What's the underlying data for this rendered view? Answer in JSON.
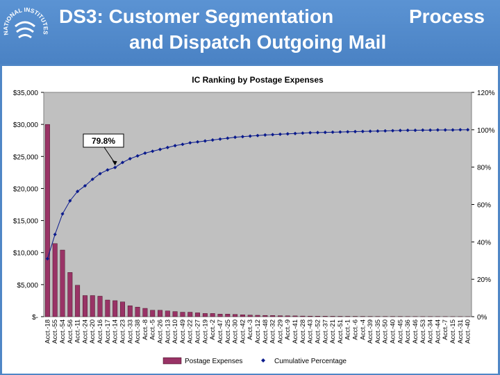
{
  "slide": {
    "title_part1": "DS3: Customer Segmentation",
    "title_part2": "Process",
    "title_line2": "and Dispatch Outgoing Mail",
    "logo_text": "NATIONAL INSTITUTES OF HEALTH"
  },
  "colors": {
    "background": "#4f86c6",
    "bar": "#993366",
    "line": "#0a1a8c",
    "plot_bg": "#c0c0c0"
  },
  "chart_data": {
    "type": "bar",
    "title": "IC Ranking by Postage Expenses",
    "callout": "79.8%",
    "callout_index": 9,
    "y_ticks_left": [
      "$35,000",
      "$30,000",
      "$25,000",
      "$20,000",
      "$15,000",
      "$10,000",
      "$5,000",
      "$-"
    ],
    "y_ticks_right": [
      "120%",
      "100%",
      "80%",
      "60%",
      "40%",
      "20%",
      "0%"
    ],
    "ylim_left": [
      0,
      35000
    ],
    "ylim_right": [
      0,
      1.2
    ],
    "legend": [
      "Postage Expenses",
      "Cumulative Percentage"
    ],
    "categories": [
      "Acct.-18",
      "Acct.-55",
      "Acct.-54",
      "Acct.-56",
      "Acct.-11",
      "Acct.-24",
      "Acct.-20",
      "Acct.-16",
      "Acct.-17",
      "Acct.-14",
      "Acct.-23",
      "Acct.-33",
      "Acct.-38",
      "Acct.-8",
      "Acct.-5",
      "Acct.-26",
      "Acct.-13",
      "Acct.-10",
      "Acct.-49",
      "Acct.-22",
      "Acct.-27",
      "Acct.-19",
      "Acct.-2",
      "Acct.-47",
      "Acct.-25",
      "Acct.-30",
      "Acct.-42",
      "Acct.-3",
      "Acct.-12",
      "Acct.-48",
      "Acct.-32",
      "Acct.-29",
      "Acct.-9",
      "Acct.-41",
      "Acct.-28",
      "Acct.-43",
      "Acct.-52",
      "Acct.-37",
      "Acct.-21",
      "Acct.-51",
      "Acct.-1",
      "Acct.-6",
      "Acct.-4",
      "Acct.-39",
      "Acct.-35",
      "Acct.-50",
      "Acct.-40",
      "Acct.-45",
      "Acct.-36",
      "Acct.-46",
      "Acct.-53",
      "Acct.-34",
      "Acct.-44",
      "Acct.-7",
      "Acct.-15",
      "Acct.-31",
      "Acct.-40"
    ],
    "series": [
      {
        "name": "Postage Expenses",
        "type": "bar",
        "values": [
          30000,
          11400,
          10400,
          6900,
          4900,
          3300,
          3300,
          3200,
          2600,
          2500,
          2300,
          1700,
          1500,
          1300,
          1000,
          1000,
          900,
          800,
          700,
          700,
          600,
          500,
          500,
          400,
          400,
          350,
          300,
          250,
          220,
          200,
          180,
          150,
          130,
          120,
          100,
          90,
          80,
          70,
          60,
          55,
          50,
          45,
          40,
          35,
          30,
          28,
          25,
          22,
          20,
          18,
          16,
          15,
          14,
          12,
          10,
          8,
          5
        ]
      },
      {
        "name": "Cumulative Percentage",
        "type": "line",
        "values": [
          0.31,
          0.44,
          0.55,
          0.62,
          0.67,
          0.7,
          0.735,
          0.765,
          0.785,
          0.798,
          0.825,
          0.845,
          0.86,
          0.875,
          0.885,
          0.895,
          0.905,
          0.915,
          0.922,
          0.93,
          0.935,
          0.94,
          0.945,
          0.95,
          0.955,
          0.96,
          0.963,
          0.966,
          0.969,
          0.972,
          0.974,
          0.976,
          0.978,
          0.98,
          0.982,
          0.984,
          0.985,
          0.986,
          0.987,
          0.988,
          0.989,
          0.99,
          0.991,
          0.992,
          0.993,
          0.994,
          0.995,
          0.996,
          0.997,
          0.997,
          0.998,
          0.998,
          0.999,
          0.999,
          0.999,
          1.0,
          1.0
        ]
      }
    ]
  }
}
